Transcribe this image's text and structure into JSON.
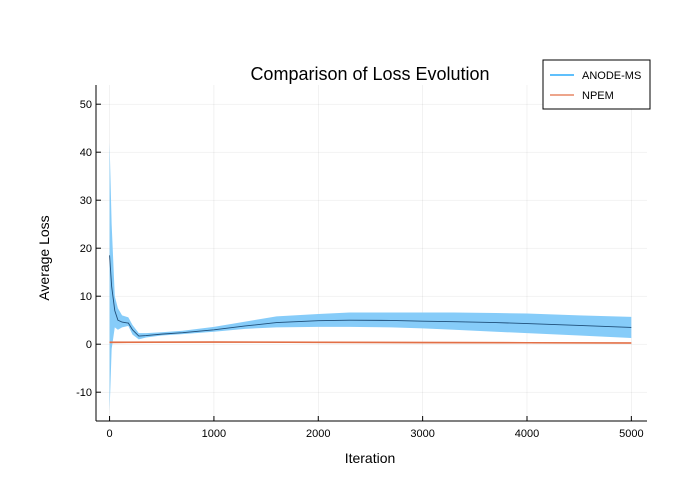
{
  "chart_data": {
    "type": "line",
    "title": "Comparison of Loss Evolution",
    "xlabel": "Iteration",
    "ylabel": "Average Loss",
    "xlim": [
      -130,
      5150
    ],
    "ylim": [
      -16,
      54
    ],
    "xticks": [
      0,
      1000,
      2000,
      3000,
      4000,
      5000
    ],
    "yticks": [
      -10,
      0,
      10,
      20,
      30,
      40,
      50
    ],
    "grid": true,
    "legend_position": "top-right",
    "series": [
      {
        "name": "ANODE-MS",
        "color": "#009AFA",
        "band_color": "#7FC9F9",
        "x": [
          0,
          20,
          50,
          80,
          120,
          180,
          220,
          280,
          350,
          500,
          700,
          1000,
          1300,
          1600,
          2000,
          2300,
          2700,
          3000,
          3300,
          3700,
          4000,
          4500,
          5000
        ],
        "mean": [
          18.5,
          12.0,
          7.0,
          5.0,
          4.6,
          4.4,
          3.0,
          1.7,
          1.8,
          2.1,
          2.4,
          3.0,
          3.8,
          4.5,
          4.9,
          5.0,
          4.95,
          4.8,
          4.7,
          4.5,
          4.3,
          3.9,
          3.5
        ],
        "upper": [
          42.0,
          25.0,
          10.0,
          7.5,
          6.0,
          5.6,
          4.0,
          2.3,
          2.3,
          2.5,
          2.8,
          3.6,
          4.7,
          5.8,
          6.3,
          6.6,
          6.6,
          6.6,
          6.6,
          6.5,
          6.4,
          6.0,
          5.7
        ],
        "lower": [
          -14.0,
          -1.0,
          3.5,
          3.0,
          3.5,
          3.8,
          2.0,
          1.0,
          1.4,
          1.8,
          2.1,
          2.6,
          3.2,
          3.5,
          3.6,
          3.6,
          3.5,
          3.3,
          3.0,
          2.6,
          2.3,
          1.8,
          1.3
        ]
      },
      {
        "name": "NPEM",
        "color": "#E26F46",
        "band_color": "#F0B7A3",
        "x": [
          0,
          1000,
          2000,
          3000,
          4000,
          5000
        ],
        "mean": [
          0.4,
          0.45,
          0.4,
          0.35,
          0.3,
          0.25
        ],
        "upper": [
          0.6,
          0.6,
          0.55,
          0.5,
          0.45,
          0.4
        ],
        "lower": [
          0.2,
          0.3,
          0.25,
          0.2,
          0.15,
          0.1
        ]
      }
    ]
  }
}
